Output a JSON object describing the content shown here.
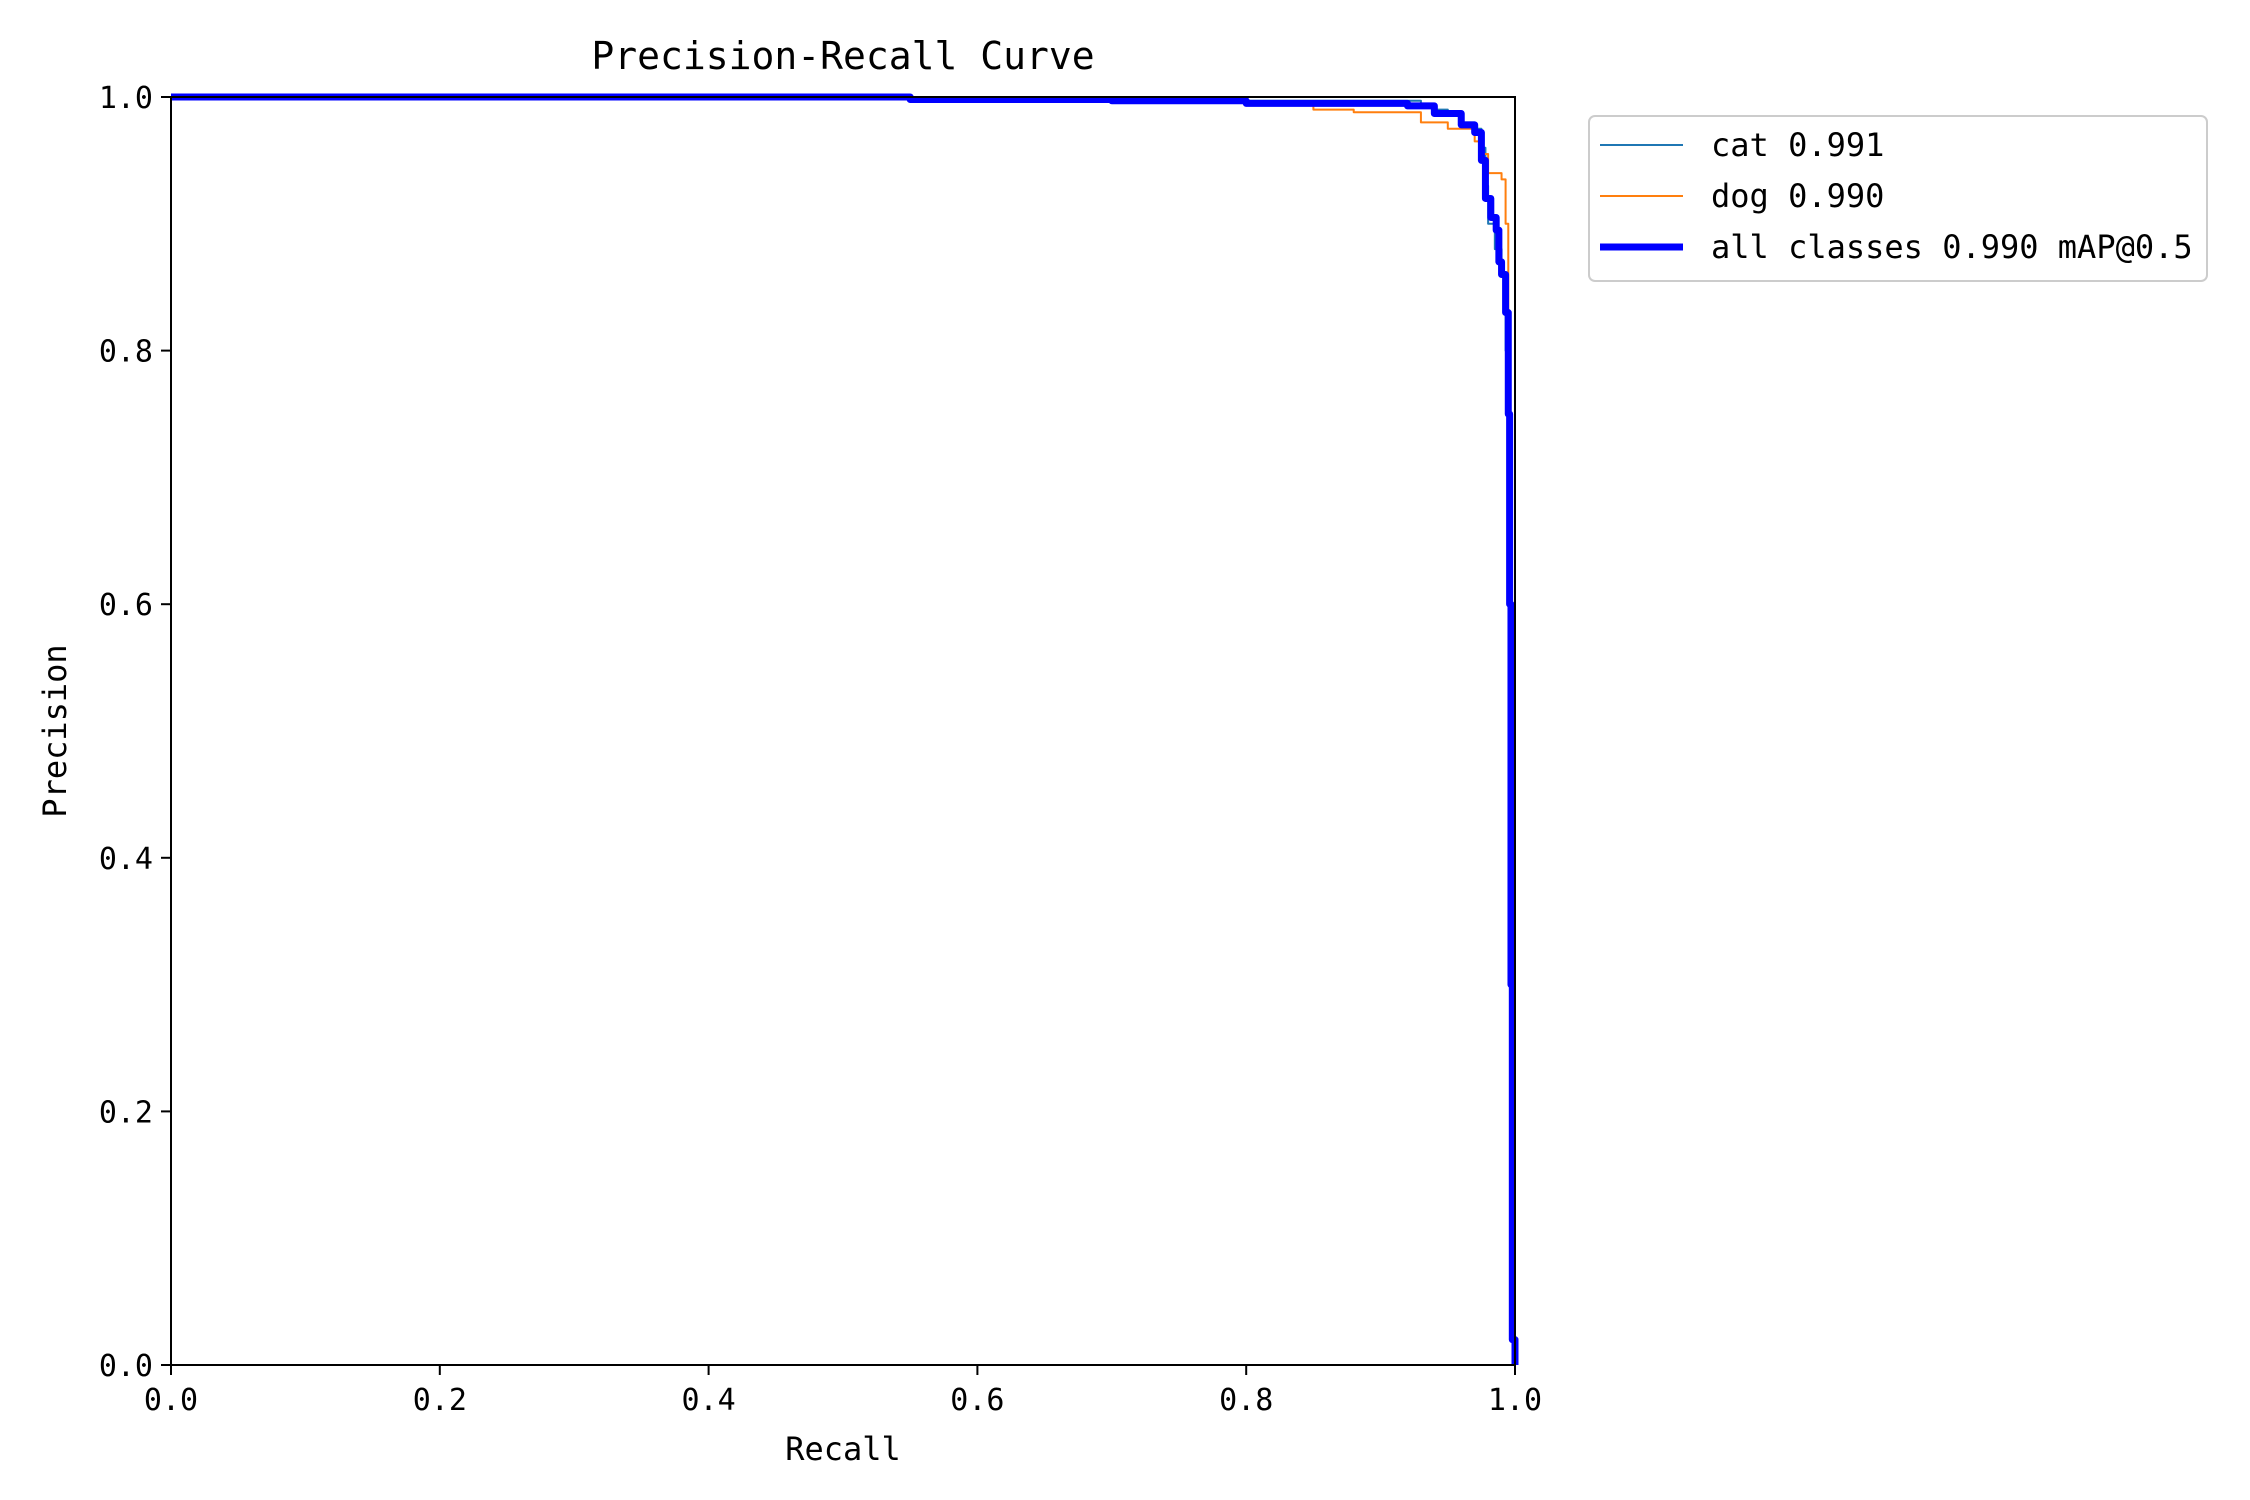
{
  "chart_data": {
    "type": "line",
    "title": "Precision-Recall Curve",
    "xlabel": "Recall",
    "ylabel": "Precision",
    "xlim": [
      0.0,
      1.0
    ],
    "ylim": [
      0.0,
      1.0
    ],
    "xticks": [
      "0.0",
      "0.2",
      "0.4",
      "0.6",
      "0.8",
      "1.0"
    ],
    "yticks": [
      "0.0",
      "0.2",
      "0.4",
      "0.6",
      "0.8",
      "1.0"
    ],
    "grid": false,
    "legend_position": "outside-top-right",
    "series": [
      {
        "name": "cat 0.991",
        "color": "#1f77b4",
        "points": [
          [
            0.0,
            1.0
          ],
          [
            0.55,
            0.999
          ],
          [
            0.7,
            0.998
          ],
          [
            0.8,
            0.997
          ],
          [
            0.9,
            0.997
          ],
          [
            0.92,
            0.997
          ],
          [
            0.93,
            0.994
          ],
          [
            0.94,
            0.99
          ],
          [
            0.95,
            0.985
          ],
          [
            0.96,
            0.98
          ],
          [
            0.97,
            0.975
          ],
          [
            0.975,
            0.96
          ],
          [
            0.978,
            0.93
          ],
          [
            0.98,
            0.9
          ],
          [
            0.985,
            0.88
          ],
          [
            0.99,
            0.86
          ],
          [
            0.993,
            0.8
          ],
          [
            0.995,
            0.7
          ],
          [
            0.996,
            0.5
          ],
          [
            0.997,
            0.2
          ],
          [
            0.998,
            0.02
          ],
          [
            1.0,
            0.0
          ]
        ]
      },
      {
        "name": "dog 0.990",
        "color": "#ff7f0e",
        "points": [
          [
            0.0,
            1.0
          ],
          [
            0.55,
            0.999
          ],
          [
            0.7,
            0.998
          ],
          [
            0.8,
            0.996
          ],
          [
            0.85,
            0.99
          ],
          [
            0.88,
            0.988
          ],
          [
            0.92,
            0.988
          ],
          [
            0.93,
            0.98
          ],
          [
            0.95,
            0.975
          ],
          [
            0.97,
            0.965
          ],
          [
            0.975,
            0.955
          ],
          [
            0.98,
            0.94
          ],
          [
            0.99,
            0.935
          ],
          [
            0.993,
            0.9
          ],
          [
            0.995,
            0.8
          ],
          [
            0.996,
            0.6
          ],
          [
            0.997,
            0.3
          ],
          [
            0.998,
            0.05
          ],
          [
            1.0,
            0.0
          ]
        ]
      },
      {
        "name": "all classes 0.990 mAP@0.5",
        "color": "#0000ff",
        "points": [
          [
            0.0,
            1.0
          ],
          [
            0.55,
            0.998
          ],
          [
            0.7,
            0.997
          ],
          [
            0.8,
            0.995
          ],
          [
            0.9,
            0.995
          ],
          [
            0.92,
            0.993
          ],
          [
            0.94,
            0.987
          ],
          [
            0.96,
            0.978
          ],
          [
            0.97,
            0.972
          ],
          [
            0.975,
            0.95
          ],
          [
            0.978,
            0.92
          ],
          [
            0.982,
            0.905
          ],
          [
            0.986,
            0.895
          ],
          [
            0.988,
            0.87
          ],
          [
            0.99,
            0.86
          ],
          [
            0.993,
            0.83
          ],
          [
            0.995,
            0.75
          ],
          [
            0.996,
            0.6
          ],
          [
            0.997,
            0.3
          ],
          [
            0.998,
            0.02
          ],
          [
            1.0,
            0.0
          ]
        ]
      }
    ]
  }
}
